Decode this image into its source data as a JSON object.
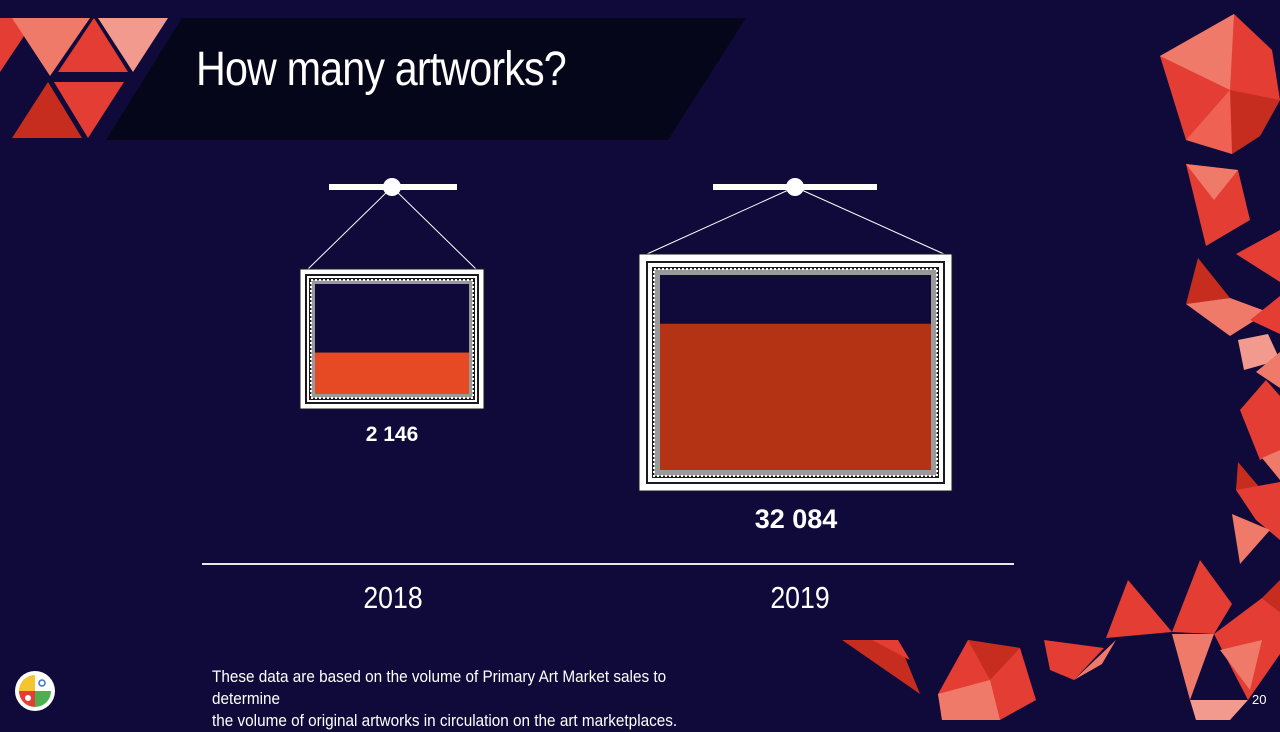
{
  "slide": {
    "title": "How many artworks?",
    "footnote_line1": "These data are based on the volume of Primary Art Market sales to determine",
    "footnote_line2": "the volume of original artworks in circulation on the art marketplaces.",
    "page_number": "20"
  },
  "colors": {
    "background": "#0f0a3a",
    "title_band": "#06061a",
    "fill_2018": "#e64a25",
    "fill_2019": "#b33314",
    "accent_red": "#e43d34",
    "accent_salmon": "#f07a6a"
  },
  "chart_data": {
    "type": "bar",
    "categories": [
      "2018",
      "2019"
    ],
    "values": [
      2146,
      32084
    ],
    "value_labels": [
      "2 146",
      "32 084"
    ],
    "xlabel": "",
    "ylabel": ""
  }
}
